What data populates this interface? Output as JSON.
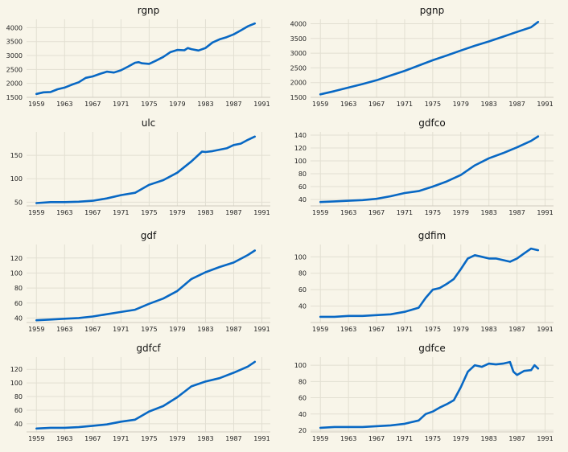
{
  "figure": {
    "background": "#f8f5e9",
    "line_color": "#0868c4",
    "grid_color": "#e2dfd2"
  },
  "chart_data": [
    {
      "type": "line",
      "title": "rgnp",
      "xlim": [
        1957.6,
        1992.2
      ],
      "ylim": [
        1500,
        4300
      ],
      "xticks": [
        "1959",
        "1963",
        "1967",
        "1971",
        "1975",
        "1979",
        "1983",
        "1987",
        "1991"
      ],
      "yticks": [
        "1500",
        "2000",
        "2500",
        "3000",
        "3500",
        "4000"
      ],
      "x": [
        1959,
        1960,
        1961,
        1962,
        1963,
        1964,
        1965,
        1966,
        1967,
        1968,
        1969,
        1970,
        1971,
        1972,
        1973,
        1973.5,
        1974,
        1975,
        1976,
        1977,
        1978,
        1979,
        1980,
        1980.5,
        1981,
        1982,
        1983,
        1984,
        1985,
        1986,
        1987,
        1988,
        1989,
        1990
      ],
      "y": [
        1620,
        1680,
        1690,
        1790,
        1850,
        1950,
        2040,
        2200,
        2250,
        2340,
        2420,
        2390,
        2470,
        2600,
        2740,
        2760,
        2720,
        2700,
        2820,
        2950,
        3120,
        3200,
        3190,
        3270,
        3230,
        3180,
        3270,
        3470,
        3580,
        3660,
        3760,
        3900,
        4050,
        4150
      ],
      "grid": true
    },
    {
      "type": "line",
      "title": "pgnp",
      "xlim": [
        1957.6,
        1992.2
      ],
      "ylim": [
        1500,
        4150
      ],
      "xticks": [
        "1959",
        "1963",
        "1967",
        "1971",
        "1975",
        "1979",
        "1983",
        "1987",
        "1991"
      ],
      "yticks": [
        "1500",
        "2000",
        "2500",
        "3000",
        "3500",
        "4000"
      ],
      "x": [
        1959,
        1961,
        1963,
        1965,
        1967,
        1969,
        1971,
        1973,
        1975,
        1977,
        1979,
        1981,
        1983,
        1985,
        1987,
        1989,
        1990
      ],
      "y": [
        1600,
        1710,
        1830,
        1950,
        2080,
        2240,
        2400,
        2580,
        2760,
        2920,
        3090,
        3250,
        3400,
        3560,
        3720,
        3880,
        4060
      ],
      "grid": true
    },
    {
      "type": "line",
      "title": "ulc",
      "xlim": [
        1957.6,
        1992.2
      ],
      "ylim": [
        42,
        200
      ],
      "xticks": [
        "1959",
        "1963",
        "1967",
        "1971",
        "1975",
        "1979",
        "1983",
        "1987",
        "1991"
      ],
      "yticks": [
        "50",
        "100",
        "150"
      ],
      "x": [
        1959,
        1961,
        1963,
        1965,
        1967,
        1969,
        1971,
        1973,
        1975,
        1977,
        1979,
        1981,
        1982.5,
        1983,
        1984,
        1985,
        1986,
        1987,
        1988,
        1989,
        1990
      ],
      "y": [
        48,
        50,
        50,
        51,
        53,
        58,
        65,
        70,
        87,
        97,
        113,
        137,
        158,
        157,
        159,
        162,
        165,
        172,
        175,
        183,
        190
      ],
      "grid": true
    },
    {
      "type": "line",
      "title": "gdfco",
      "xlim": [
        1957.6,
        1992.2
      ],
      "ylim": [
        30,
        145
      ],
      "xticks": [
        "1959",
        "1963",
        "1967",
        "1971",
        "1975",
        "1979",
        "1983",
        "1987",
        "1991"
      ],
      "yticks": [
        "40",
        "60",
        "80",
        "100",
        "120",
        "140"
      ],
      "x": [
        1959,
        1961,
        1963,
        1965,
        1967,
        1969,
        1971,
        1973,
        1975,
        1977,
        1979,
        1981,
        1983,
        1985,
        1987,
        1989,
        1990
      ],
      "y": [
        36,
        37,
        38,
        39,
        41,
        45,
        50,
        53,
        60,
        68,
        78,
        93,
        104,
        112,
        121,
        131,
        138
      ],
      "grid": true
    },
    {
      "type": "line",
      "title": "gdf",
      "xlim": [
        1957.6,
        1992.2
      ],
      "ylim": [
        34,
        138
      ],
      "xticks": [
        "1959",
        "1963",
        "1967",
        "1971",
        "1975",
        "1979",
        "1983",
        "1987",
        "1991"
      ],
      "yticks": [
        "40",
        "60",
        "80",
        "100",
        "120"
      ],
      "x": [
        1959,
        1961,
        1963,
        1965,
        1967,
        1969,
        1971,
        1973,
        1975,
        1977,
        1979,
        1981,
        1983,
        1985,
        1987,
        1989,
        1990
      ],
      "y": [
        37,
        38,
        39,
        40,
        42,
        45,
        48,
        51,
        59,
        66,
        76,
        92,
        101,
        108,
        114,
        124,
        130
      ],
      "grid": true
    },
    {
      "type": "line",
      "title": "gdfim",
      "xlim": [
        1957.6,
        1992.2
      ],
      "ylim": [
        20,
        115
      ],
      "xticks": [
        "1959",
        "1963",
        "1967",
        "1971",
        "1975",
        "1979",
        "1983",
        "1987",
        "1991"
      ],
      "yticks": [
        "40",
        "60",
        "80",
        "100"
      ],
      "x": [
        1959,
        1961,
        1963,
        1965,
        1967,
        1969,
        1971,
        1973,
        1974,
        1975,
        1976,
        1977,
        1978,
        1979,
        1980,
        1981,
        1982,
        1983,
        1984,
        1985,
        1986,
        1987,
        1988,
        1989,
        1990
      ],
      "y": [
        27,
        27,
        28,
        28,
        29,
        30,
        33,
        38,
        50,
        60,
        62,
        67,
        73,
        85,
        98,
        102,
        100,
        98,
        98,
        96,
        94,
        98,
        104,
        110,
        108
      ],
      "grid": true
    },
    {
      "type": "line",
      "title": "gdfcf",
      "xlim": [
        1957.6,
        1992.2
      ],
      "ylim": [
        28,
        138
      ],
      "xticks": [
        "1959",
        "1963",
        "1967",
        "1971",
        "1975",
        "1979",
        "1983",
        "1987",
        "1991"
      ],
      "yticks": [
        "40",
        "60",
        "80",
        "100",
        "120"
      ],
      "x": [
        1959,
        1961,
        1963,
        1965,
        1967,
        1969,
        1971,
        1973,
        1975,
        1977,
        1979,
        1981,
        1983,
        1985,
        1987,
        1989,
        1990
      ],
      "y": [
        33,
        34,
        34,
        35,
        37,
        39,
        43,
        46,
        58,
        66,
        79,
        95,
        102,
        107,
        115,
        124,
        131
      ],
      "grid": true
    },
    {
      "type": "line",
      "title": "gdfce",
      "xlim": [
        1957.6,
        1992.2
      ],
      "ylim": [
        18,
        110
      ],
      "xticks": [
        "1959",
        "1963",
        "1967",
        "1971",
        "1975",
        "1979",
        "1983",
        "1987",
        "1991"
      ],
      "yticks": [
        "20",
        "40",
        "60",
        "80",
        "100"
      ],
      "x": [
        1959,
        1961,
        1963,
        1965,
        1967,
        1969,
        1971,
        1973,
        1974,
        1975,
        1976,
        1977,
        1978,
        1979,
        1980,
        1981,
        1982,
        1983,
        1984,
        1985,
        1986,
        1986.5,
        1987,
        1988,
        1989,
        1989.5,
        1990
      ],
      "y": [
        23,
        24,
        24,
        24,
        25,
        26,
        28,
        32,
        40,
        43,
        48,
        52,
        57,
        73,
        92,
        100,
        98,
        102,
        101,
        102,
        104,
        92,
        88,
        93,
        94,
        100,
        96
      ],
      "grid": true
    }
  ]
}
